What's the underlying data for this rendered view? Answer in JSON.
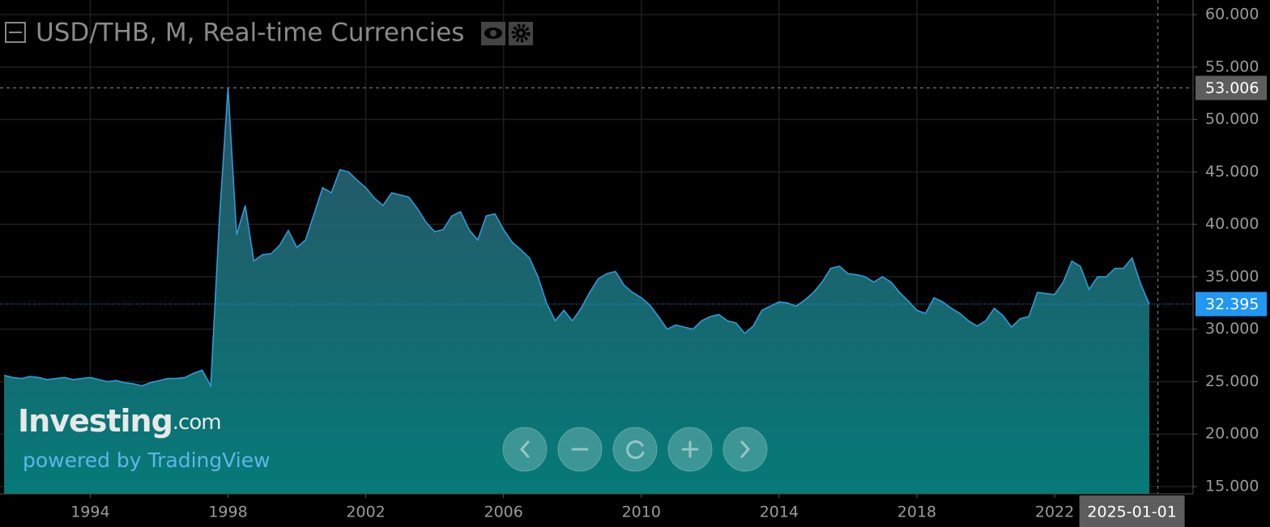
{
  "chart_data": {
    "type": "area",
    "title": "USD/THB, M, Real-time Currencies",
    "logo": "Investing",
    "logo_suffix": ".com",
    "powered_by": "powered by TradingView",
    "color": "#2e9bd6",
    "grid": true,
    "crosshair_date": "2025-01-01",
    "high": 53.006,
    "last": 32.395,
    "xlim": [
      1991.38,
      2026.02
    ],
    "xticks": [
      1994,
      1998,
      2002,
      2006,
      2010,
      2014,
      2018,
      2022
    ],
    "ylim": [
      15,
      60
    ],
    "yticks": [
      {
        "value": 15,
        "label": "15.000"
      },
      {
        "value": 20,
        "label": "20.000"
      },
      {
        "value": 25,
        "label": "25.000"
      },
      {
        "value": 30,
        "label": "30.000"
      },
      {
        "value": 35,
        "label": "35.000"
      },
      {
        "value": 40,
        "label": "40.000"
      },
      {
        "value": 45,
        "label": "45.000"
      },
      {
        "value": 50,
        "label": "50.000"
      },
      {
        "value": 55,
        "label": "55.000"
      },
      {
        "value": 60,
        "label": "60.000"
      }
    ],
    "x": [
      1991.5,
      1991.75,
      1992,
      1992.25,
      1992.5,
      1992.75,
      1993,
      1993.25,
      1993.5,
      1993.75,
      1994,
      1994.25,
      1994.5,
      1994.75,
      1995,
      1995.25,
      1995.5,
      1995.75,
      1996,
      1996.25,
      1996.5,
      1996.75,
      1997,
      1997.25,
      1997.5,
      1997.75,
      1998,
      1998.25,
      1998.5,
      1998.75,
      1999,
      1999.25,
      1999.5,
      1999.75,
      2000,
      2000.25,
      2000.5,
      2000.75,
      2001,
      2001.25,
      2001.5,
      2001.75,
      2002,
      2002.25,
      2002.5,
      2002.75,
      2003,
      2003.25,
      2003.5,
      2003.75,
      2004,
      2004.25,
      2004.5,
      2004.75,
      2005,
      2005.25,
      2005.5,
      2005.75,
      2006,
      2006.25,
      2006.5,
      2006.75,
      2007,
      2007.25,
      2007.5,
      2007.75,
      2008,
      2008.25,
      2008.5,
      2008.75,
      2009,
      2009.25,
      2009.5,
      2009.75,
      2010,
      2010.25,
      2010.5,
      2010.75,
      2011,
      2011.25,
      2011.5,
      2011.75,
      2012,
      2012.25,
      2012.5,
      2012.75,
      2013,
      2013.25,
      2013.5,
      2013.75,
      2014,
      2014.25,
      2014.5,
      2014.75,
      2015,
      2015.25,
      2015.5,
      2015.75,
      2016,
      2016.25,
      2016.5,
      2016.75,
      2017,
      2017.25,
      2017.5,
      2017.75,
      2018,
      2018.25,
      2018.5,
      2018.75,
      2019,
      2019.25,
      2019.5,
      2019.75,
      2020,
      2020.25,
      2020.5,
      2020.75,
      2021,
      2021.25,
      2021.5,
      2021.75,
      2022,
      2022.25,
      2022.5,
      2022.75,
      2023,
      2023.25,
      2023.5,
      2023.75,
      2024,
      2024.25,
      2024.5,
      2024.75
    ],
    "values": [
      25.6,
      25.4,
      25.3,
      25.5,
      25.4,
      25.2,
      25.3,
      25.4,
      25.2,
      25.3,
      25.4,
      25.2,
      25.0,
      25.1,
      24.9,
      24.8,
      24.6,
      24.9,
      25.1,
      25.3,
      25.3,
      25.4,
      25.8,
      26.1,
      24.6,
      40.5,
      53.006,
      39.0,
      41.8,
      36.5,
      37.1,
      37.2,
      38.0,
      39.4,
      37.8,
      38.5,
      41.0,
      43.5,
      43.0,
      45.2,
      45.0,
      44.2,
      43.5,
      42.5,
      41.8,
      43.0,
      42.8,
      42.6,
      41.5,
      40.2,
      39.3,
      39.5,
      40.8,
      41.2,
      39.5,
      38.5,
      40.8,
      41.0,
      39.5,
      38.3,
      37.6,
      36.8,
      35.0,
      32.5,
      30.8,
      31.8,
      30.8,
      32.0,
      33.5,
      34.8,
      35.3,
      35.5,
      34.2,
      33.5,
      33.0,
      32.3,
      31.2,
      30.0,
      30.4,
      30.2,
      30.0,
      30.8,
      31.2,
      31.4,
      30.8,
      30.6,
      29.6,
      30.3,
      31.8,
      32.2,
      32.6,
      32.5,
      32.2,
      32.8,
      33.5,
      34.5,
      35.8,
      36.0,
      35.3,
      35.2,
      35.0,
      34.5,
      35.0,
      34.5,
      33.5,
      32.7,
      31.8,
      31.5,
      33.0,
      32.6,
      32.0,
      31.5,
      30.8,
      30.3,
      30.8,
      32.0,
      31.3,
      30.2,
      31.0,
      31.2,
      33.5,
      33.4,
      33.3,
      34.5,
      36.5,
      36.0,
      33.8,
      35.0,
      35.0,
      35.8,
      35.8,
      36.8,
      34.3,
      32.395
    ]
  }
}
